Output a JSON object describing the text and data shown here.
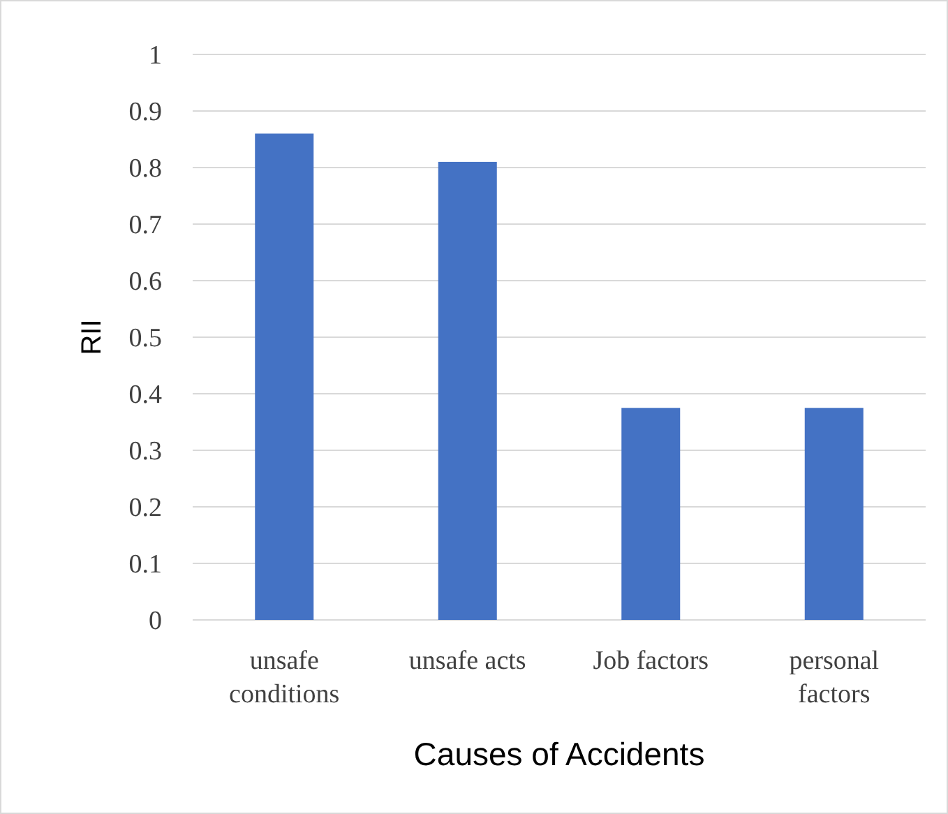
{
  "chart_data": {
    "type": "bar",
    "xlabel": "Causes of Accidents",
    "ylabel": "RII",
    "categories": [
      "unsafe conditions",
      "unsafe acts",
      "Job factors",
      "personal factors"
    ],
    "values": [
      0.86,
      0.81,
      0.375,
      0.375
    ],
    "color": "#4472c4",
    "ylim": [
      0,
      1
    ],
    "yticks": [
      0,
      {
        "value": 0.1,
        "label": "0.1"
      },
      {
        "value": 0.2,
        "label": "0.2"
      },
      {
        "value": 0.3,
        "label": "0.3"
      },
      {
        "value": 0.4,
        "label": "0.4"
      },
      {
        "value": 0.5,
        "label": "0.5"
      },
      {
        "value": 0.6,
        "label": "0.6"
      },
      {
        "value": 0.7,
        "label": "0.7"
      },
      {
        "value": 0.8,
        "label": "0.8"
      },
      {
        "value": 0.9,
        "label": "0.9"
      },
      1
    ],
    "grid": true
  }
}
